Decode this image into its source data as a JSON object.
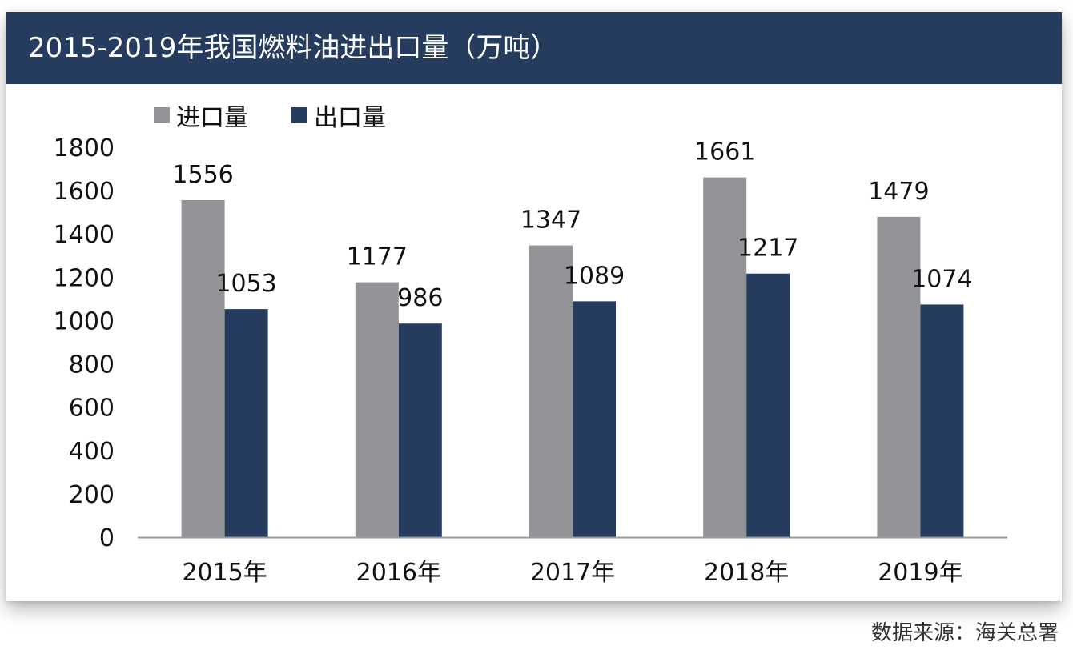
{
  "title": "2015-2019年我国燃料油进出口量（万吨）",
  "source": "数据来源：海关总署",
  "colors": {
    "header_bg": "#253c5f",
    "import": "#939498",
    "export": "#253c5f"
  },
  "chart_data": {
    "type": "bar",
    "title": "2015-2019年我国燃料油进出口量（万吨）",
    "categories": [
      "2015年",
      "2016年",
      "2017年",
      "2018年",
      "2019年"
    ],
    "series": [
      {
        "name": "进口量",
        "values": [
          1556,
          1177,
          1347,
          1661,
          1479
        ]
      },
      {
        "name": "出口量",
        "values": [
          1053,
          986,
          1089,
          1217,
          1074
        ]
      }
    ],
    "xlabel": "",
    "ylabel": "",
    "ylim": [
      0,
      1800
    ],
    "yticks": [
      0,
      200,
      400,
      600,
      800,
      1000,
      1200,
      1400,
      1600,
      1800
    ],
    "grid": false,
    "legend": "top-left"
  }
}
